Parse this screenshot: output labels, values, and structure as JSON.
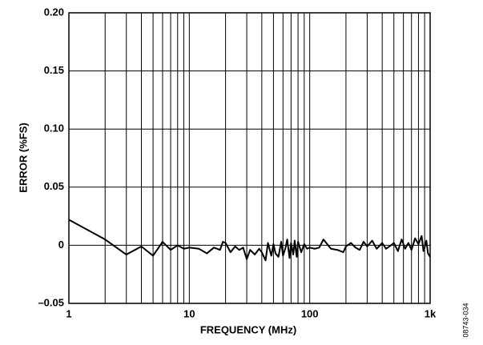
{
  "chart_data": {
    "type": "line",
    "xlabel": "FREQUENCY (MHz)",
    "ylabel": "ERROR (%FS)",
    "figure_id": "08743-034",
    "x": [
      1,
      2,
      3,
      4,
      5,
      6,
      7,
      8,
      9,
      10,
      12,
      14,
      16,
      18,
      19,
      20,
      22,
      24,
      26,
      28,
      30,
      32,
      35,
      38,
      40,
      43,
      45,
      48,
      50,
      52,
      55,
      58,
      60,
      63,
      65,
      68,
      70,
      73,
      75,
      78,
      80,
      85,
      90,
      95,
      100,
      110,
      120,
      130,
      150,
      170,
      190,
      200,
      220,
      240,
      260,
      280,
      300,
      330,
      360,
      400,
      430,
      460,
      500,
      540,
      580,
      620,
      660,
      700,
      750,
      800,
      850,
      880,
      900,
      930,
      960,
      1000
    ],
    "values": [
      0.022,
      0.005,
      -0.008,
      -0.001,
      -0.009,
      0.003,
      -0.004,
      0,
      -0.003,
      -0.002,
      -0.003,
      -0.007,
      -0.002,
      -0.004,
      0.003,
      0.002,
      -0.006,
      -0.001,
      -0.004,
      -0.002,
      -0.012,
      -0.004,
      -0.008,
      -0.003,
      -0.006,
      -0.013,
      0.002,
      -0.009,
      0.001,
      -0.007,
      -0.01,
      0.003,
      -0.009,
      -0.002,
      0.005,
      -0.011,
      0.002,
      -0.008,
      0.004,
      -0.01,
      0.003,
      -0.006,
      0.001,
      -0.003,
      -0.002,
      -0.003,
      -0.002,
      0.005,
      -0.003,
      -0.004,
      -0.006,
      -0.001,
      0.002,
      -0.002,
      -0.004,
      0.003,
      -0.001,
      0.004,
      -0.003,
      0.002,
      -0.003,
      -0.001,
      0.002,
      -0.005,
      0.005,
      -0.003,
      0.002,
      -0.004,
      0.006,
      0.001,
      0.008,
      -0.005,
      -0.002,
      0.004,
      -0.007,
      -0.01
    ],
    "color": "#000000",
    "xscale": "log",
    "xlim": [
      1,
      1000
    ],
    "xticks": [
      1,
      10,
      100,
      {
        "value": 1000,
        "label": "1k"
      }
    ],
    "xgrid_minor": [
      2,
      3,
      4,
      5,
      6,
      7,
      8,
      9,
      20,
      30,
      40,
      50,
      60,
      70,
      80,
      90,
      200,
      300,
      400,
      500,
      600,
      700,
      800,
      900
    ],
    "ylim": [
      -0.05,
      0.2
    ],
    "yticks": [
      {
        "value": -0.05,
        "label": "–0.05"
      },
      0,
      {
        "value": 0.05,
        "label": "0.05"
      },
      {
        "value": 0.1,
        "label": "0.10"
      },
      {
        "value": 0.15,
        "label": "0.15"
      },
      {
        "value": 0.2,
        "label": "0.20"
      }
    ],
    "grid": true
  }
}
